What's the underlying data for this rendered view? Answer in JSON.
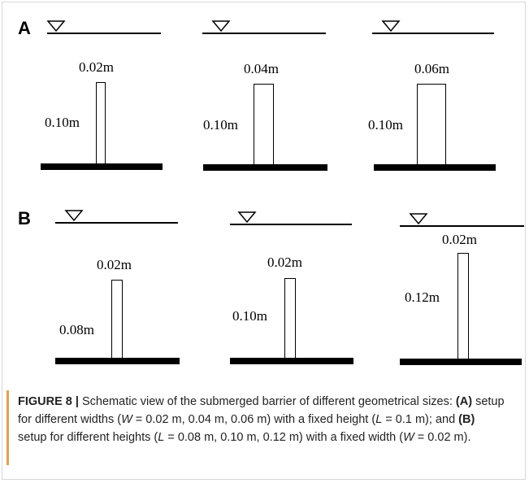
{
  "panel_a": {
    "letter": "A",
    "barriers": [
      {
        "width_label": "0.02m",
        "height_label": "0.10m"
      },
      {
        "width_label": "0.04m",
        "height_label": "0.10m"
      },
      {
        "width_label": "0.06m",
        "height_label": "0.10m"
      }
    ]
  },
  "panel_b": {
    "letter": "B",
    "barriers": [
      {
        "width_label": "0.02m",
        "height_label": "0.08m"
      },
      {
        "width_label": "0.02m",
        "height_label": "0.10m"
      },
      {
        "width_label": "0.02m",
        "height_label": "0.12m"
      }
    ]
  },
  "caption": {
    "label": "FIGURE 8 |",
    "part1": " Schematic view of the submerged barrier of different geometrical sizes: ",
    "ref_a": "(A)",
    "part2": " setup for different widths (",
    "w_sym1": "W",
    "part3": " = 0.02 m, 0.04 m, 0.06 m) with a fixed height (",
    "l_sym1": "L",
    "part4": " = 0.1 m); and ",
    "ref_b": "(B)",
    "part5": " setup for different heights (",
    "l_sym2": "L",
    "part6": " = 0.08 m, 0.10 m, 0.12 m) with a fixed width (",
    "w_sym2": "W",
    "part7": " = 0.02 m)."
  }
}
